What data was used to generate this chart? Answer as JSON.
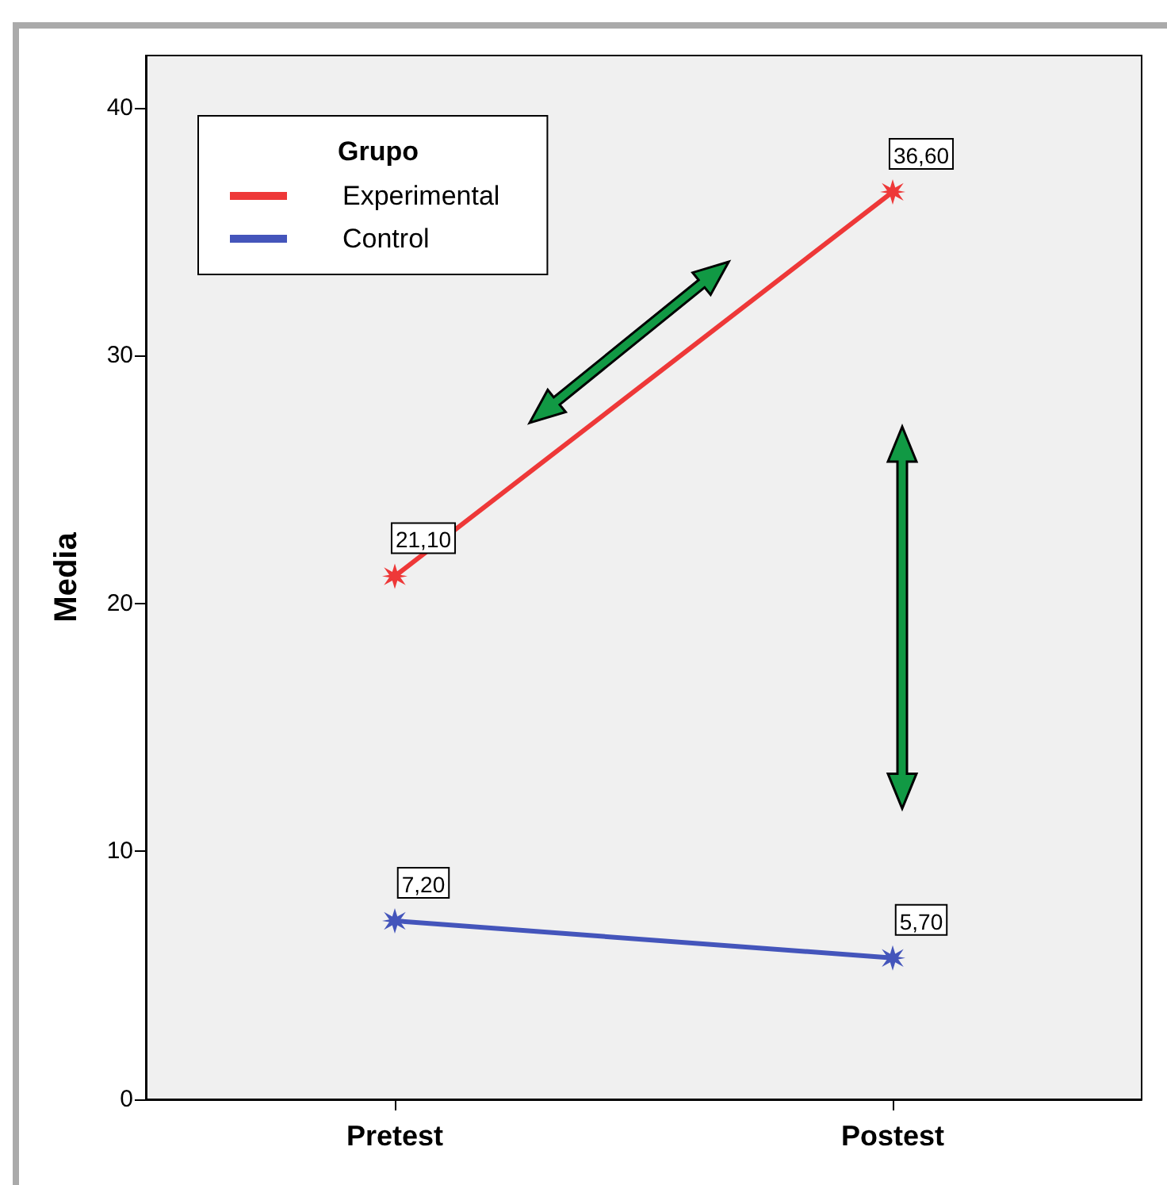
{
  "chart_data": {
    "type": "line",
    "ylabel": "Media",
    "legend_title": "Grupo",
    "categories": [
      "Pretest",
      "Postest"
    ],
    "series": [
      {
        "name": "Experimental",
        "color": "#ee3838",
        "values": [
          21.1,
          36.6
        ],
        "value_labels": [
          "21,10",
          "36,60"
        ]
      },
      {
        "name": "Control",
        "color": "#4455bb",
        "values": [
          7.2,
          5.7
        ],
        "value_labels": [
          "7,20",
          "5,70"
        ]
      }
    ],
    "ylim": [
      0,
      42.1
    ],
    "yticks": [
      0,
      10,
      20,
      30,
      40
    ],
    "grid": false,
    "legend": "top left",
    "marker": "star",
    "line_style": "solid"
  }
}
